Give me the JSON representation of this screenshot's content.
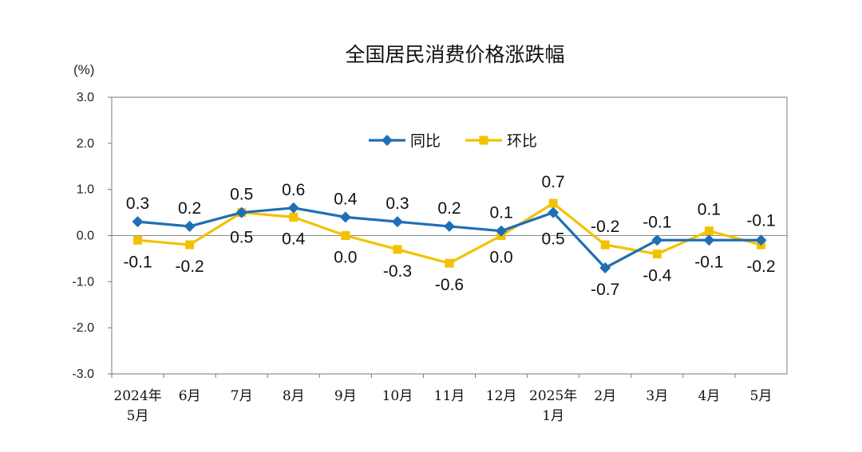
{
  "chart_data": {
    "type": "line",
    "title": "全国居民消费价格涨跌幅",
    "unit_label": "(%)",
    "ylim": [
      -3.0,
      3.0
    ],
    "yticks": [
      "3.0",
      "2.0",
      "1.0",
      "0.0",
      "-1.0",
      "-2.0",
      "-3.0"
    ],
    "categories": [
      [
        "2024年",
        "5月"
      ],
      [
        "6月"
      ],
      [
        "7月"
      ],
      [
        "8月"
      ],
      [
        "9月"
      ],
      [
        "10月"
      ],
      [
        "11月"
      ],
      [
        "12月"
      ],
      [
        "2025年",
        "1月"
      ],
      [
        "2月"
      ],
      [
        "3月"
      ],
      [
        "4月"
      ],
      [
        "5月"
      ]
    ],
    "legend_position": "top-center",
    "series": [
      {
        "name": "同比",
        "color": "#1f6fb5",
        "marker": "diamond",
        "values": [
          0.3,
          0.2,
          0.5,
          0.6,
          0.4,
          0.3,
          0.2,
          0.1,
          0.5,
          -0.7,
          -0.1,
          -0.1,
          -0.1
        ],
        "labels": [
          "0.3",
          "0.2",
          "0.5",
          "0.6",
          "0.4",
          "0.3",
          "0.2",
          "0.1",
          "0.5",
          "-0.7",
          "-0.1",
          "-0.1",
          "-0.1"
        ]
      },
      {
        "name": "环比",
        "color": "#f2c200",
        "marker": "square",
        "values": [
          -0.1,
          -0.2,
          0.5,
          0.4,
          0.0,
          -0.3,
          -0.6,
          0.0,
          0.7,
          -0.2,
          -0.4,
          0.1,
          -0.2
        ],
        "labels": [
          "-0.1",
          "-0.2",
          "0.5",
          "0.4",
          "0.0",
          "-0.3",
          "-0.6",
          "0.0",
          "0.7",
          "-0.2",
          "-0.4",
          "0.1",
          "-0.2"
        ]
      }
    ]
  }
}
